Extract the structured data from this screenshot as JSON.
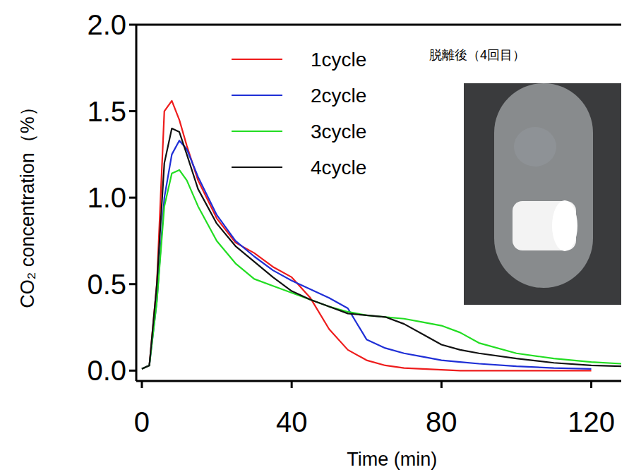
{
  "chart_data": {
    "type": "line",
    "x_label": "Time (min)",
    "y_label": "CO₂ concentration（%）",
    "annotation": "脱離後（4回目）",
    "x": [
      0,
      2,
      4,
      6,
      8,
      10,
      12,
      15,
      20,
      25,
      30,
      35,
      40,
      45,
      50,
      55,
      60,
      65,
      70,
      75,
      80,
      85,
      90,
      100,
      110,
      120,
      128
    ],
    "series": [
      {
        "name": "1cycle",
        "color": "#ee1c1c",
        "values": [
          0.01,
          0.03,
          0.5,
          1.5,
          1.56,
          1.45,
          1.3,
          1.1,
          0.88,
          0.74,
          0.68,
          0.6,
          0.54,
          0.42,
          0.24,
          0.12,
          0.06,
          0.03,
          0.015,
          0.01,
          0.005,
          0,
          0,
          0,
          0,
          0,
          null
        ]
      },
      {
        "name": "2cycle",
        "color": "#1f2fd6",
        "values": [
          0.01,
          0.03,
          0.4,
          1.0,
          1.25,
          1.33,
          1.28,
          1.12,
          0.9,
          0.75,
          0.66,
          0.58,
          0.52,
          0.47,
          0.42,
          0.36,
          0.18,
          0.13,
          0.1,
          0.08,
          0.06,
          0.05,
          0.04,
          0.025,
          0.015,
          0.01,
          null
        ]
      },
      {
        "name": "3cycle",
        "color": "#22dd22",
        "values": [
          0.01,
          0.03,
          0.4,
          0.95,
          1.14,
          1.16,
          1.1,
          0.95,
          0.75,
          0.62,
          0.53,
          0.49,
          0.45,
          0.41,
          0.37,
          0.34,
          0.32,
          0.31,
          0.3,
          0.28,
          0.26,
          0.22,
          0.16,
          0.1,
          0.07,
          0.05,
          0.04
        ]
      },
      {
        "name": "4cycle",
        "color": "#111111",
        "values": [
          0.01,
          0.03,
          0.5,
          1.2,
          1.4,
          1.38,
          1.25,
          1.05,
          0.85,
          0.72,
          0.63,
          0.54,
          0.46,
          0.41,
          0.37,
          0.33,
          0.32,
          0.31,
          0.27,
          0.21,
          0.15,
          0.12,
          0.1,
          0.07,
          0.045,
          0.03,
          0.025
        ]
      }
    ],
    "xlim": [
      -1.5,
      128
    ],
    "ylim": [
      -0.06,
      2.0
    ],
    "xticks": [
      0,
      40,
      80,
      120
    ],
    "yticks": [
      {
        "value": 0,
        "label": "0.0"
      },
      {
        "value": 0.5,
        "label": "0.5"
      },
      {
        "value": 1,
        "label": "1.0"
      },
      {
        "value": 1.5,
        "label": "1.5"
      },
      {
        "value": 2,
        "label": "2.0"
      }
    ],
    "grid": false,
    "legend": "top"
  }
}
